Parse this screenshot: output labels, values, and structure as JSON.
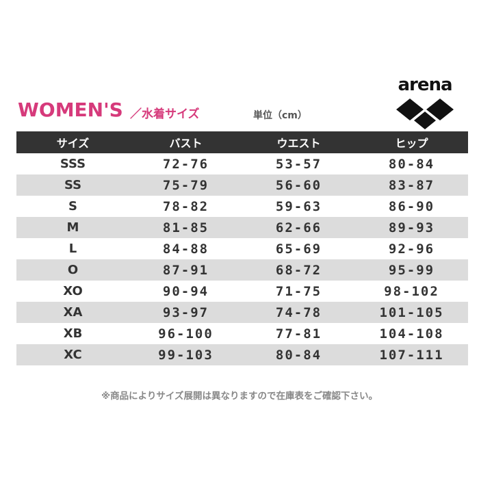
{
  "title": "WOMEN'S",
  "subtitle": "／水着サイズ",
  "unit": "単位（cm）",
  "logo": {
    "text": "arena"
  },
  "colors": {
    "title": "#d63a7b",
    "header_bg": "#333333",
    "alt_row": "#dcdcdc"
  },
  "table": {
    "headers": [
      "サイズ",
      "バスト",
      "ウエスト",
      "ヒップ"
    ],
    "rows": [
      [
        "SSS",
        "72-76",
        "53-57",
        "80-84"
      ],
      [
        "SS",
        "75-79",
        "56-60",
        "83-87"
      ],
      [
        "S",
        "78-82",
        "59-63",
        "86-90"
      ],
      [
        "M",
        "81-85",
        "62-66",
        "89-93"
      ],
      [
        "L",
        "84-88",
        "65-69",
        "92-96"
      ],
      [
        "O",
        "87-91",
        "68-72",
        "95-99"
      ],
      [
        "XO",
        "90-94",
        "71-75",
        "98-102"
      ],
      [
        "XA",
        "93-97",
        "74-78",
        "101-105"
      ],
      [
        "XB",
        "96-100",
        "77-81",
        "104-108"
      ],
      [
        "XC",
        "99-103",
        "80-84",
        "107-111"
      ]
    ]
  },
  "note": "※商品によりサイズ展開は異なりますので在庫表をご確認下さい。"
}
